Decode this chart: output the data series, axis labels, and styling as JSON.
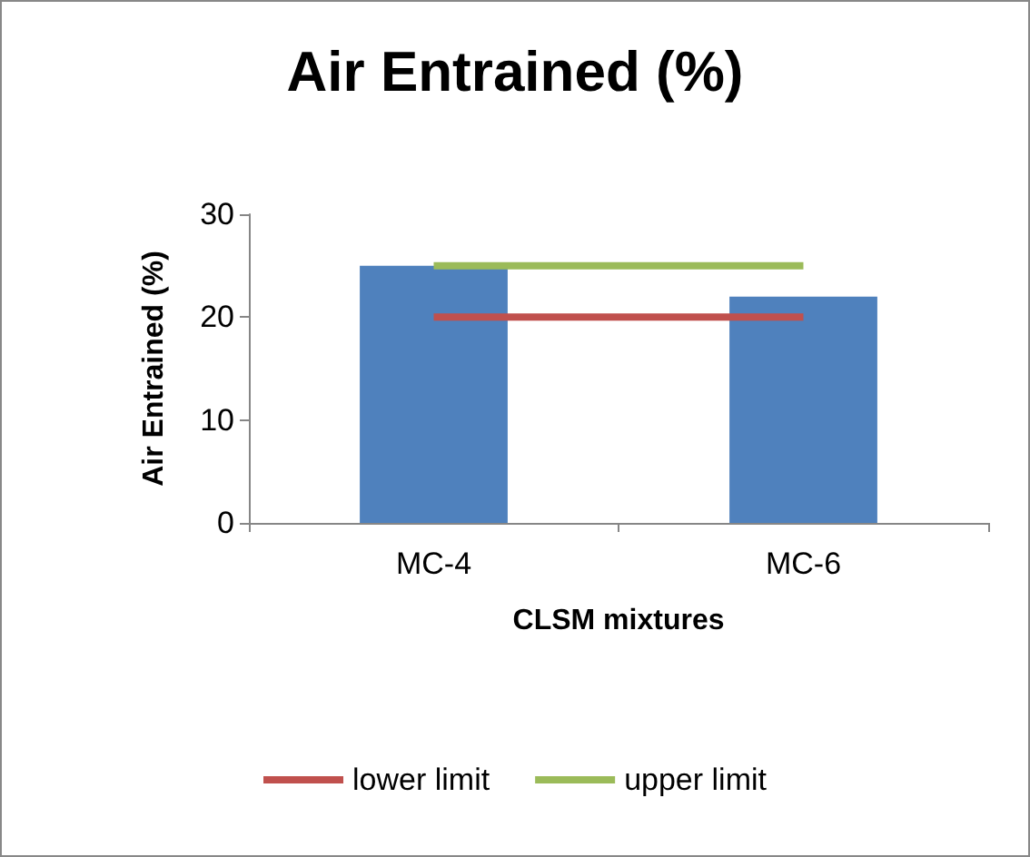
{
  "chart_data": {
    "type": "bar",
    "title": "Air Entrained (%)",
    "xlabel": "CLSM mixtures",
    "ylabel": "Air Entrained (%)",
    "categories": [
      "MC-4",
      "MC-6"
    ],
    "series": [
      {
        "color": "#4f81bd",
        "values": [
          25,
          22
        ]
      },
      {
        "type": "line",
        "name": "lower limit",
        "color": "#c0504d",
        "values": [
          20,
          20
        ]
      },
      {
        "type": "line",
        "name": "upper limit",
        "color": "#9bbb59",
        "values": [
          25,
          25
        ]
      }
    ],
    "ylim": [
      0,
      30
    ],
    "yticks": [
      0,
      10,
      20,
      30
    ],
    "grid": false,
    "legend": "bottom",
    "marker": "none"
  }
}
